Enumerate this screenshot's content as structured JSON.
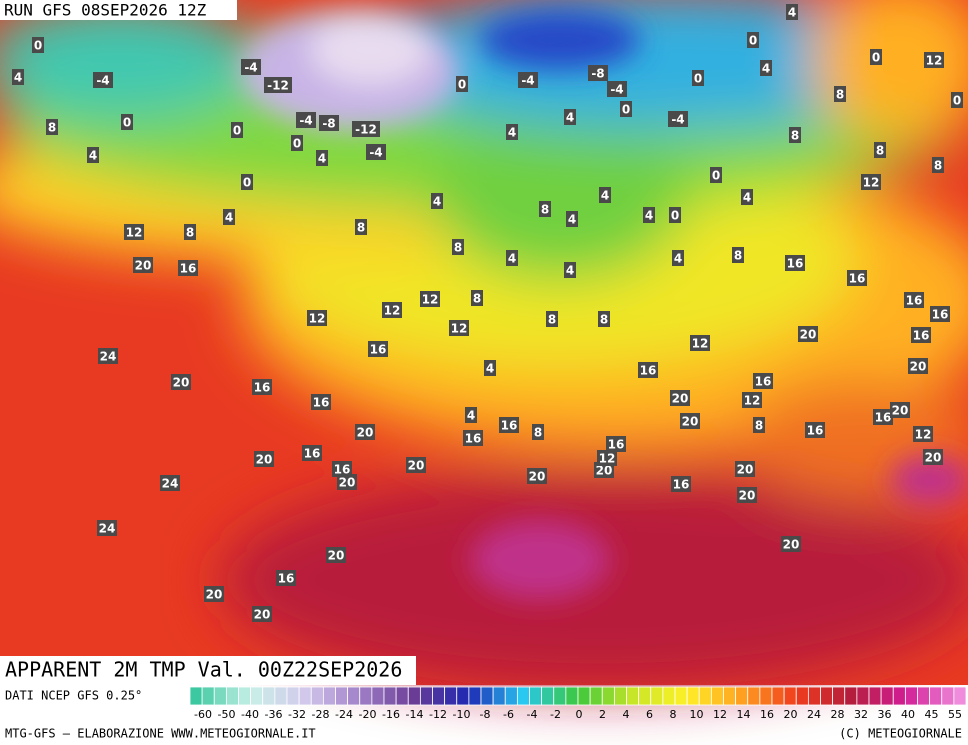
{
  "header": {
    "run": "RUN GFS 08SEP2026 12Z"
  },
  "title": "APPARENT 2M TMP Val. 00Z22SEP2026",
  "map": {
    "labels": [
      0,
      4,
      -4,
      8,
      0,
      4,
      0,
      0,
      4,
      12,
      8,
      20,
      16,
      24,
      20,
      16,
      16,
      12,
      16,
      12,
      12,
      12,
      8,
      4,
      8,
      8,
      4,
      8,
      4,
      4,
      8,
      8,
      4,
      4,
      0,
      4,
      0,
      4,
      8,
      16,
      16,
      16,
      16,
      20,
      16,
      20,
      12,
      8,
      8,
      8,
      8,
      0,
      12,
      0,
      4,
      0,
      4,
      0,
      -4,
      0,
      -8,
      -4,
      4,
      4,
      -4,
      0,
      -4,
      -12,
      4,
      0,
      -4,
      -12,
      -8,
      -4,
      12,
      16,
      20,
      12,
      16,
      20,
      8,
      16,
      16,
      20,
      12,
      20,
      20,
      20,
      16,
      20,
      20,
      16,
      12,
      20,
      8,
      16,
      16,
      20,
      20,
      16,
      16,
      20,
      20,
      24,
      24,
      20,
      16,
      20,
      20,
      4,
      4
    ]
  },
  "legend": {
    "source": "DATI NCEP GFS 0.25°",
    "ticks": [
      -60,
      -50,
      -40,
      -36,
      -32,
      -28,
      -24,
      -20,
      -16,
      -14,
      -12,
      -10,
      -8,
      -6,
      -4,
      -2,
      0,
      2,
      4,
      6,
      8,
      10,
      12,
      14,
      16,
      20,
      24,
      28,
      32,
      36,
      40,
      45,
      55
    ]
  },
  "footer": {
    "left": "MTG-GFS — ELABORAZIONE WWW.METEOGIORNALE.IT",
    "right": "(C) METEOGIORNALE"
  }
}
